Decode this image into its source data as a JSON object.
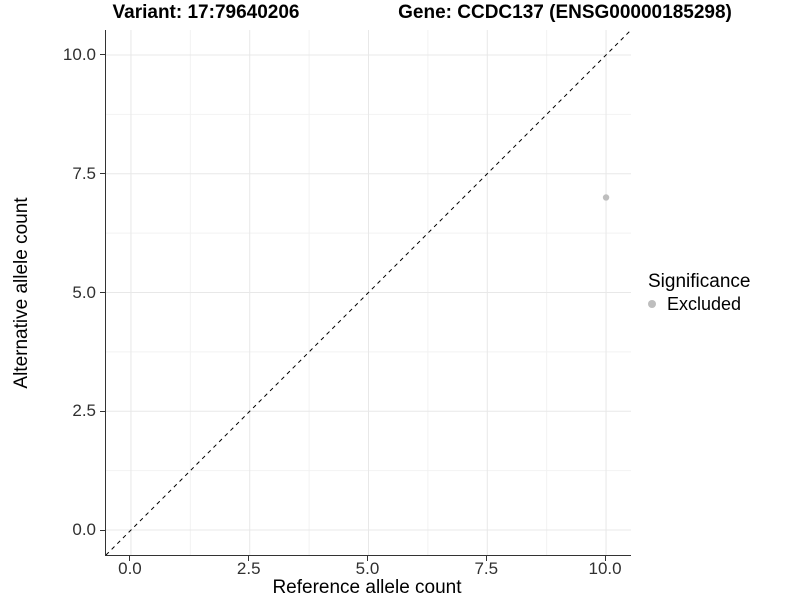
{
  "chart_data": {
    "type": "scatter",
    "title_left": "Variant: 17:79640206",
    "title_right": "Gene: CCDC137 (ENSG00000185298)",
    "xlabel": "Reference allele count",
    "ylabel": "Alternative allele count",
    "xlim": [
      -0.525,
      10.525
    ],
    "ylim": [
      -0.525,
      10.525
    ],
    "x_ticks": {
      "values": [
        0,
        2.5,
        5,
        7.5,
        10
      ],
      "labels": [
        "0.0",
        "2.5",
        "5.0",
        "7.5",
        "10.0"
      ]
    },
    "y_ticks": {
      "values": [
        0,
        2.5,
        5,
        7.5,
        10
      ],
      "labels": [
        "0.0",
        "2.5",
        "5.0",
        "7.5",
        "10.0"
      ]
    },
    "minor_tick_values": [
      1.25,
      3.75,
      6.25,
      8.75
    ],
    "grid": "major+minor",
    "identity_line": {
      "style": "dashed",
      "slope": 1,
      "intercept": 0,
      "color": "#000000"
    },
    "series": [
      {
        "name": "Excluded",
        "color": "#bebebe",
        "points": [
          {
            "x": 10,
            "y": 7
          }
        ]
      }
    ],
    "legend": {
      "title": "Significance",
      "position": "right",
      "entries": [
        {
          "label": "Excluded",
          "color": "#bebebe",
          "marker": "dot"
        }
      ]
    }
  },
  "colors": {
    "background": "#ffffff",
    "axis_line": "#333333",
    "tick_label": "#303030",
    "grid_major": "#e8e8e8",
    "grid_minor": "#f2f2f2"
  }
}
